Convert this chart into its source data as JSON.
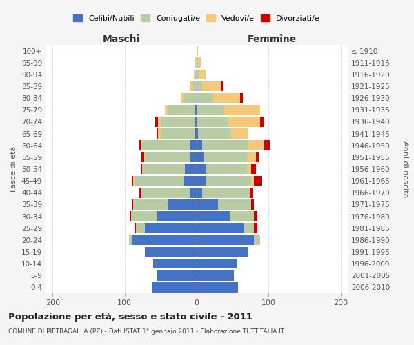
{
  "age_groups": [
    "0-4",
    "5-9",
    "10-14",
    "15-19",
    "20-24",
    "25-29",
    "30-34",
    "35-39",
    "40-44",
    "45-49",
    "50-54",
    "55-59",
    "60-64",
    "65-69",
    "70-74",
    "75-79",
    "80-84",
    "85-89",
    "90-94",
    "95-99",
    "100+"
  ],
  "birth_years": [
    "2006-2010",
    "2001-2005",
    "1996-2000",
    "1991-1995",
    "1986-1990",
    "1981-1985",
    "1976-1980",
    "1971-1975",
    "1966-1970",
    "1961-1965",
    "1956-1960",
    "1951-1955",
    "1946-1950",
    "1941-1945",
    "1936-1940",
    "1931-1935",
    "1926-1930",
    "1921-1925",
    "1916-1920",
    "1911-1915",
    "≤ 1910"
  ],
  "maschi": {
    "celibi": [
      62,
      56,
      60,
      72,
      90,
      72,
      55,
      40,
      10,
      18,
      16,
      10,
      10,
      2,
      2,
      2,
      0,
      0,
      0,
      0,
      0
    ],
    "coniugati": [
      0,
      0,
      0,
      0,
      4,
      12,
      36,
      48,
      68,
      68,
      60,
      62,
      66,
      48,
      48,
      38,
      18,
      6,
      2,
      0,
      0
    ],
    "vedovi": [
      0,
      0,
      0,
      0,
      0,
      0,
      0,
      0,
      0,
      2,
      0,
      2,
      2,
      4,
      4,
      4,
      4,
      4,
      2,
      2,
      0
    ],
    "divorziati": [
      0,
      0,
      0,
      0,
      0,
      2,
      2,
      2,
      2,
      2,
      2,
      4,
      2,
      2,
      4,
      0,
      0,
      0,
      0,
      0,
      0
    ]
  },
  "femmine": {
    "nubili": [
      58,
      52,
      56,
      72,
      80,
      66,
      46,
      30,
      8,
      12,
      12,
      10,
      8,
      2,
      0,
      0,
      0,
      0,
      0,
      0,
      0
    ],
    "coniugate": [
      0,
      0,
      0,
      0,
      8,
      14,
      34,
      46,
      66,
      64,
      58,
      60,
      64,
      46,
      44,
      38,
      22,
      8,
      4,
      2,
      0
    ],
    "vedove": [
      0,
      0,
      0,
      0,
      0,
      0,
      0,
      0,
      0,
      4,
      6,
      12,
      22,
      24,
      44,
      50,
      38,
      26,
      8,
      4,
      2
    ],
    "divorziate": [
      0,
      0,
      0,
      0,
      0,
      4,
      4,
      4,
      4,
      10,
      6,
      4,
      8,
      0,
      6,
      0,
      4,
      2,
      0,
      0,
      0
    ]
  },
  "colors": {
    "celibi": "#4472c4",
    "coniugati": "#b8cca4",
    "vedovi": "#f5c97a",
    "divorziati": "#cc0000"
  },
  "xlim": 210,
  "title": "Popolazione per età, sesso e stato civile - 2011",
  "subtitle": "COMUNE DI PIETRAGALLA (PZ) - Dati ISTAT 1° gennaio 2011 - Elaborazione TUTTITALIA.IT",
  "ylabel": "Fasce di età",
  "ylabel_right": "Anni di nascita",
  "xlabel_maschi": "Maschi",
  "xlabel_femmine": "Femmine",
  "legend_labels": [
    "Celibi/Nubili",
    "Coniugati/e",
    "Vedovi/e",
    "Divorziati/e"
  ],
  "bg_color": "#f5f5f5",
  "plot_bg": "#ffffff"
}
